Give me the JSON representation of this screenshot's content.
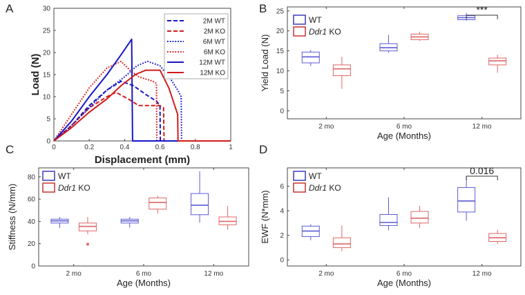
{
  "chart_data": [
    {
      "panel": "A",
      "type": "line",
      "xlabel": "Displacement (mm)",
      "ylabel": "Load (N)",
      "xlim": [
        0,
        1
      ],
      "ylim": [
        0,
        30
      ],
      "xticks": [
        "0",
        "0.2",
        "0.4",
        "0.6",
        "0.8",
        "1"
      ],
      "yticks": [
        "0",
        "5",
        "10",
        "15",
        "20",
        "25",
        "30"
      ],
      "series": [
        {
          "name": "2M WT",
          "color": "#1515c8",
          "dash": "dashed",
          "x": [
            0,
            0.1,
            0.2,
            0.3,
            0.38,
            0.45,
            0.52,
            0.58,
            0.6,
            0.602,
            0.7,
            0.8,
            0.9,
            1.0
          ],
          "y": [
            0,
            3.5,
            8,
            11.5,
            13.5,
            12.5,
            10.5,
            9,
            8,
            0,
            0,
            0,
            0,
            0
          ]
        },
        {
          "name": "2M KO",
          "color": "#d21a1a",
          "dash": "dashed",
          "x": [
            0,
            0.1,
            0.2,
            0.3,
            0.35,
            0.42,
            0.48,
            0.55,
            0.6,
            0.62,
            0.623,
            0.7,
            0.8,
            0.9,
            1.0
          ],
          "y": [
            0,
            3.5,
            7.5,
            10,
            11,
            9.5,
            8,
            8,
            8,
            7.5,
            0,
            0,
            0,
            0,
            0
          ]
        },
        {
          "name": "6M WT",
          "color": "#1515c8",
          "dash": "dotted",
          "x": [
            0,
            0.1,
            0.2,
            0.3,
            0.4,
            0.47,
            0.53,
            0.6,
            0.66,
            0.7,
            0.72,
            0.722,
            0.8,
            0.9,
            1.0
          ],
          "y": [
            0,
            3.5,
            7.5,
            11.5,
            14.5,
            17,
            18,
            17,
            14,
            11.5,
            10,
            0,
            0,
            0,
            0
          ]
        },
        {
          "name": "6M KO",
          "color": "#d21a1a",
          "dash": "dotted",
          "x": [
            0,
            0.1,
            0.2,
            0.3,
            0.38,
            0.43,
            0.48,
            0.52,
            0.56,
            0.58,
            0.582,
            0.7,
            0.8,
            0.9,
            1.0
          ],
          "y": [
            0,
            6,
            12,
            16.5,
            18,
            16,
            14.5,
            14,
            13.5,
            13,
            0,
            0,
            0,
            0,
            0
          ]
        },
        {
          "name": "12M WT",
          "color": "#1515c8",
          "dash": "solid",
          "x": [
            0,
            0.1,
            0.2,
            0.3,
            0.38,
            0.44,
            0.445,
            0.5,
            0.6,
            0.7,
            0.8,
            0.9,
            1.0
          ],
          "y": [
            0,
            4.5,
            10,
            15,
            19.5,
            23,
            0,
            0,
            0,
            0,
            0,
            0,
            0
          ]
        },
        {
          "name": "12M KO",
          "color": "#d21a1a",
          "dash": "solid",
          "x": [
            0,
            0.1,
            0.2,
            0.3,
            0.38,
            0.46,
            0.52,
            0.6,
            0.65,
            0.7,
            0.702,
            0.8,
            0.9,
            1.0
          ],
          "y": [
            0,
            3,
            6.5,
            9.5,
            12.5,
            15,
            16,
            16,
            12,
            6,
            0,
            0,
            0,
            0
          ]
        }
      ]
    },
    {
      "panel": "B",
      "type": "box",
      "ylabel": "Yield Load (N)",
      "xlabel": "Age (Months)",
      "ylim": [
        -2,
        26
      ],
      "yticks": [
        "0",
        "5",
        "10",
        "15",
        "20",
        "25"
      ],
      "categories": [
        "2 mo",
        "6 mo",
        "12 mo"
      ],
      "legend": [
        {
          "label": "WT",
          "color": "#3a3ab8"
        },
        {
          "label_italic": "Ddr1",
          "label_rest": " KO",
          "color": "#c83232"
        }
      ],
      "series": [
        {
          "name": "WT",
          "color": "#5a5ad2",
          "boxes": [
            {
              "min": 11.2,
              "q1": 12,
              "median": 13.5,
              "q3": 14.7,
              "max": 15.2
            },
            {
              "min": 14.5,
              "q1": 15,
              "median": 15.8,
              "q3": 16.8,
              "max": 19
            },
            {
              "min": 22.5,
              "q1": 22.8,
              "median": 23.3,
              "q3": 23.8,
              "max": 24.5
            }
          ]
        },
        {
          "name": "Ddr1 KO",
          "color": "#e06464",
          "boxes": [
            {
              "min": 5.5,
              "q1": 8.8,
              "median": 10.5,
              "q3": 11.5,
              "max": 13.5
            },
            {
              "min": 17.5,
              "q1": 17.8,
              "median": 18.5,
              "q3": 19.2,
              "max": 19.8
            },
            {
              "min": 9.5,
              "q1": 11.5,
              "median": 12.5,
              "q3": 13.2,
              "max": 14
            }
          ]
        }
      ],
      "significance": [
        {
          "category": "12 mo",
          "label": "***"
        }
      ]
    },
    {
      "panel": "C",
      "type": "box",
      "ylabel": "Stiffness (N/mm)",
      "xlabel": "Age (Months)",
      "ylim": [
        0,
        88
      ],
      "yticks": [
        "0",
        "20",
        "40",
        "60",
        "80"
      ],
      "categories": [
        "2 mo",
        "6 mo",
        "12 mo"
      ],
      "legend": [
        {
          "label": "WT",
          "color": "#3a3ab8"
        },
        {
          "label_italic": "Ddr1",
          "label_rest": " KO",
          "color": "#c83232"
        }
      ],
      "series": [
        {
          "name": "WT",
          "color": "#5a5ad2",
          "boxes": [
            {
              "min": 34,
              "q1": 38.5,
              "median": 40.5,
              "q3": 42,
              "max": 44
            },
            {
              "min": 34.5,
              "q1": 38.5,
              "median": 40.5,
              "q3": 42,
              "max": 44
            },
            {
              "min": 39,
              "q1": 46,
              "median": 54.5,
              "q3": 65,
              "max": 85
            }
          ]
        },
        {
          "name": "Ddr1 KO",
          "color": "#e06464",
          "boxes": [
            {
              "min": 28.5,
              "q1": 31.5,
              "median": 35.5,
              "q3": 38.5,
              "max": 44,
              "outliers": [
                19.5
              ]
            },
            {
              "min": 47,
              "q1": 51,
              "median": 57,
              "q3": 61,
              "max": 63
            },
            {
              "min": 32.5,
              "q1": 37,
              "median": 40,
              "q3": 44,
              "max": 54
            }
          ]
        }
      ]
    },
    {
      "panel": "D",
      "type": "box",
      "ylabel": "EWF (N*mm)",
      "xlabel": "Age (Months)",
      "ylim": [
        -0.5,
        7.5
      ],
      "yticks": [
        "0",
        "2",
        "4",
        "6"
      ],
      "categories": [
        "2 mo",
        "6 mo",
        "12 mo"
      ],
      "legend": [
        {
          "label": "WT",
          "color": "#3a3ab8"
        },
        {
          "label_italic": "Ddr1",
          "label_rest": " KO",
          "color": "#c83232"
        }
      ],
      "series": [
        {
          "name": "WT",
          "color": "#5a5ad2",
          "boxes": [
            {
              "min": 1.6,
              "q1": 1.9,
              "median": 2.35,
              "q3": 2.75,
              "max": 2.9
            },
            {
              "min": 2.4,
              "q1": 2.8,
              "median": 3.05,
              "q3": 3.7,
              "max": 5.1
            },
            {
              "min": 3.2,
              "q1": 3.9,
              "median": 4.8,
              "q3": 5.9,
              "max": 6.8
            }
          ]
        },
        {
          "name": "Ddr1 KO",
          "color": "#e06464",
          "boxes": [
            {
              "min": 0.7,
              "q1": 1.0,
              "median": 1.3,
              "q3": 1.8,
              "max": 2.8
            },
            {
              "min": 2.6,
              "q1": 3.0,
              "median": 3.4,
              "q3": 3.95,
              "max": 4.4
            },
            {
              "min": 1.3,
              "q1": 1.5,
              "median": 1.8,
              "q3": 2.15,
              "max": 2.45
            }
          ]
        }
      ],
      "significance": [
        {
          "category": "12 mo",
          "label": "0.016"
        }
      ]
    }
  ],
  "panels": {
    "A": "A",
    "B": "B",
    "C": "C",
    "D": "D"
  }
}
